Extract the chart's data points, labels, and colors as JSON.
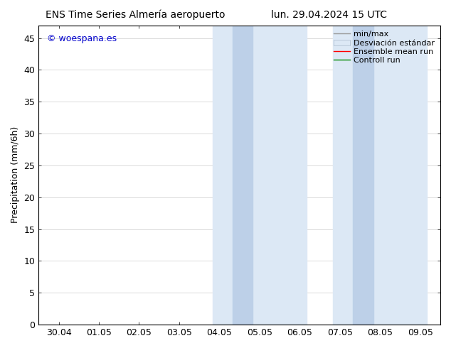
{
  "title_left": "ENS Time Series Almería aeropuerto",
  "title_right": "lun. 29.04.2024 15 UTC",
  "ylabel": "Precipitation (mm/6h)",
  "watermark": "© woespana.es",
  "watermark_color": "#0000cc",
  "x_tick_labels": [
    "30.04",
    "01.05",
    "02.05",
    "03.05",
    "04.05",
    "05.05",
    "06.05",
    "07.05",
    "08.05",
    "09.05"
  ],
  "x_tick_values": [
    0,
    1,
    2,
    3,
    4,
    5,
    6,
    7,
    8,
    9
  ],
  "ylim": [
    0,
    47
  ],
  "yticks": [
    0,
    5,
    10,
    15,
    20,
    25,
    30,
    35,
    40,
    45
  ],
  "xlim": [
    -0.5,
    9.5
  ],
  "shaded_outer_1": {
    "xmin": 3.83,
    "xmax": 6.17,
    "color": "#dce8f5"
  },
  "shaded_inner_1": {
    "xmin": 4.33,
    "xmax": 4.83,
    "color": "#bdd0e8"
  },
  "shaded_outer_2": {
    "xmin": 6.83,
    "xmax": 9.17,
    "color": "#dce8f5"
  },
  "shaded_inner_2": {
    "xmin": 7.33,
    "xmax": 7.83,
    "color": "#bdd0e8"
  },
  "bg_color": "#ffffff",
  "grid_color": "#cccccc",
  "font_size": 9,
  "title_font_size": 10,
  "legend_font_size": 8
}
